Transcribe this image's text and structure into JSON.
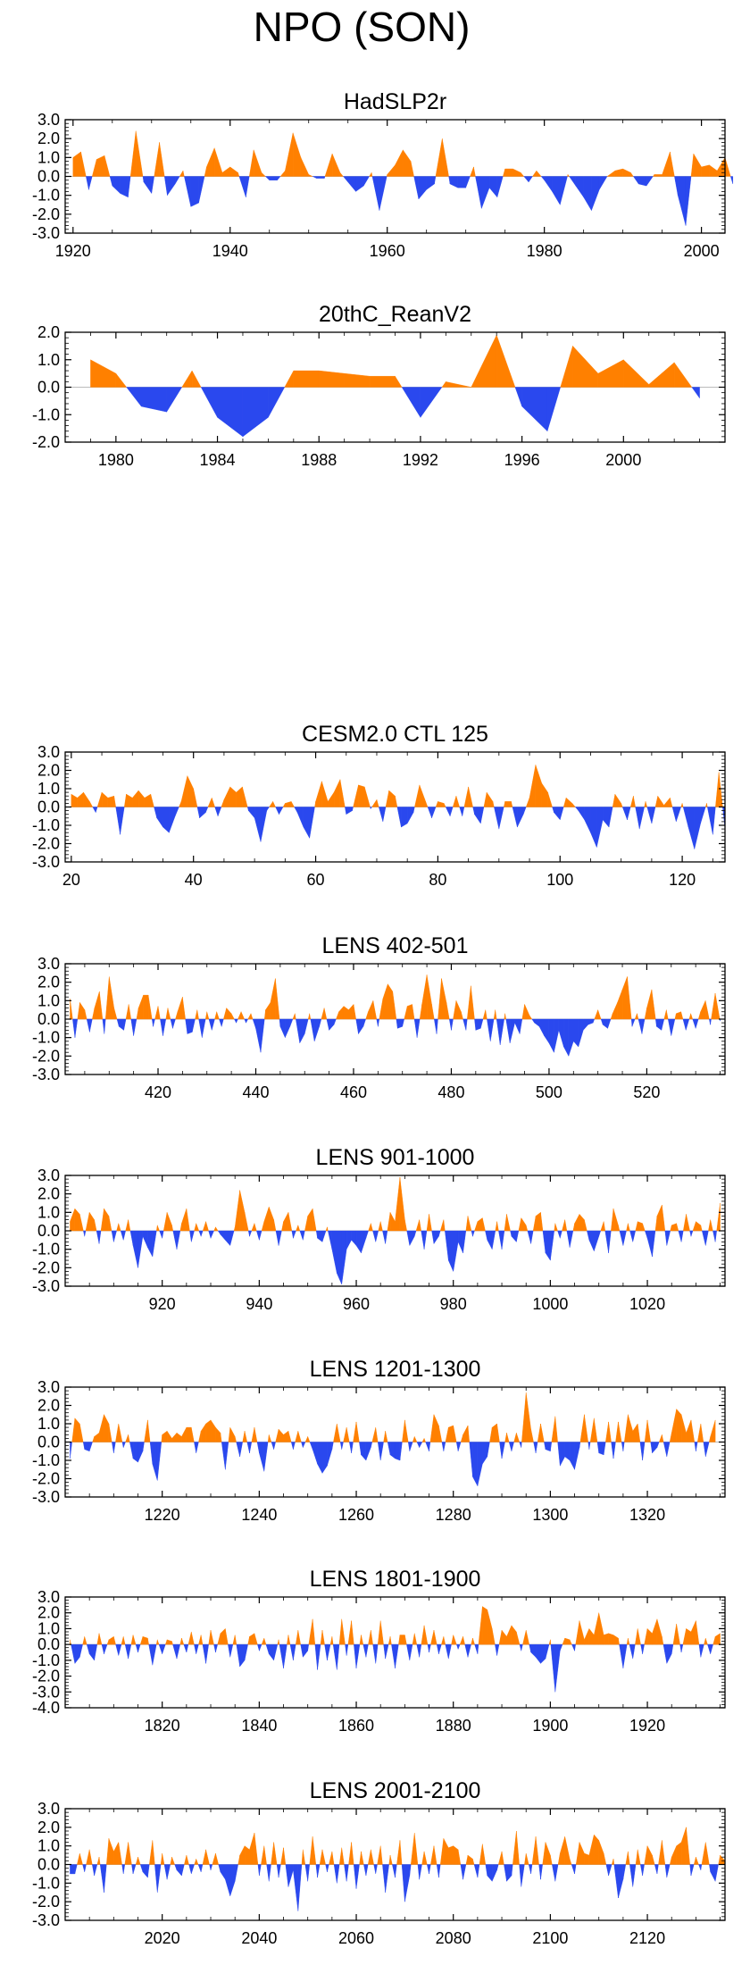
{
  "page_title": "NPO (SON)",
  "colors": {
    "positive": "#ff8000",
    "negative": "#2a48ee",
    "axis": "#000000",
    "zero_line": "#bbbbbb"
  },
  "chart_data": [
    {
      "type": "area",
      "title": "HadSLP2r",
      "x_start": 1920,
      "x_step": 1,
      "xlim": [
        1919,
        2003
      ],
      "ylim": [
        -3,
        3
      ],
      "x_ticks": [
        1920,
        1940,
        1960,
        1980,
        2000
      ],
      "x_tick_labels": [
        "1920",
        "1940",
        "1960",
        "1980",
        "2000"
      ],
      "y_ticks": [
        -3,
        -2,
        -1,
        0,
        1,
        2,
        3
      ],
      "y_tick_labels": [
        "-3.0",
        "-2.0",
        "-1.0",
        "0.0",
        "1.0",
        "2.0",
        "3.0"
      ],
      "values": [
        1.0,
        1.3,
        -0.7,
        0.9,
        1.1,
        -0.5,
        -0.9,
        -1.1,
        2.4,
        -0.3,
        -0.9,
        1.8,
        -1.0,
        -0.4,
        0.3,
        -1.6,
        -1.4,
        0.5,
        1.5,
        0.2,
        0.5,
        0.2,
        -1.1,
        1.4,
        0.2,
        -0.2,
        -0.2,
        0.3,
        2.3,
        1.0,
        0.1,
        -0.1,
        -0.1,
        1.2,
        0.2,
        -0.3,
        -0.8,
        -0.5,
        0.2,
        -1.8,
        0.1,
        0.6,
        1.4,
        0.8,
        -1.2,
        -0.7,
        -0.4,
        2.0,
        -0.4,
        -0.6,
        -0.6,
        0.5,
        -1.7,
        -0.6,
        -1.1,
        0.4,
        0.4,
        0.2,
        -0.3,
        0.3,
        -0.2,
        -0.8,
        -1.5,
        0.1,
        -0.5,
        -1.1,
        -1.8,
        -0.7,
        0.0,
        0.3,
        0.4,
        0.2,
        -0.4,
        -0.5,
        0.1,
        0.1,
        1.3,
        -1.0,
        -2.6,
        1.2,
        0.5,
        0.6,
        0.3,
        1.0,
        -0.4
      ]
    },
    {
      "type": "area",
      "title": "20thC_ReanV2",
      "x_start": 1979,
      "x_step": 1,
      "xlim": [
        1978,
        2004
      ],
      "ylim": [
        -2,
        2
      ],
      "x_ticks": [
        1980,
        1984,
        1988,
        1992,
        1996,
        2000
      ],
      "x_tick_labels": [
        "1980",
        "1984",
        "1988",
        "1992",
        "1996",
        "2000"
      ],
      "y_ticks": [
        -2,
        -1,
        0,
        1,
        2
      ],
      "y_tick_labels": [
        "-2.0",
        "-1.0",
        "0.0",
        "1.0",
        "2.0"
      ],
      "values": [
        1.0,
        0.5,
        -0.7,
        -0.9,
        0.6,
        -1.1,
        -1.8,
        -1.1,
        0.6,
        0.6,
        0.5,
        0.4,
        0.4,
        -1.1,
        0.2,
        0.0,
        1.9,
        -0.7,
        -1.6,
        1.5,
        0.5,
        1.0,
        0.1,
        0.9,
        -0.4
      ]
    },
    {
      "type": "area",
      "title": "CESM2.0 CTL 125",
      "x_start": 20,
      "x_step": 1,
      "xlim": [
        19,
        127
      ],
      "ylim": [
        -3,
        3
      ],
      "x_ticks": [
        20,
        40,
        60,
        80,
        100,
        120
      ],
      "x_tick_labels": [
        "20",
        "40",
        "60",
        "80",
        "100",
        "120"
      ],
      "y_ticks": [
        -3,
        -2,
        -1,
        0,
        1,
        2,
        3
      ],
      "y_tick_labels": [
        "-3.0",
        "-2.0",
        "-1.0",
        "0.0",
        "1.0",
        "2.0",
        "3.0"
      ],
      "values": [
        0.7,
        0.5,
        0.8,
        0.3,
        -0.3,
        0.8,
        0.5,
        0.6,
        -1.5,
        0.7,
        0.5,
        0.9,
        0.5,
        0.7,
        -0.6,
        -1.1,
        -1.4,
        -0.5,
        0.3,
        1.7,
        1.0,
        -0.6,
        -0.3,
        0.5,
        -0.5,
        0.4,
        1.1,
        0.8,
        1.1,
        -0.2,
        -0.6,
        -1.9,
        -0.2,
        0.3,
        -0.4,
        0.2,
        0.3,
        -0.3,
        -1.1,
        -1.7,
        0.3,
        1.4,
        0.3,
        0.8,
        1.5,
        -0.4,
        -0.2,
        1.2,
        1.1,
        -0.1,
        0.4,
        -0.8,
        0.9,
        0.6,
        -1.1,
        -0.9,
        -0.3,
        1.2,
        0.3,
        -0.6,
        0.3,
        0.2,
        -0.5,
        0.6,
        -0.5,
        1.1,
        -0.4,
        -0.9,
        0.8,
        0.3,
        -1.2,
        0.3,
        0.3,
        -1.1,
        -0.4,
        0.5,
        2.3,
        1.3,
        0.8,
        -0.3,
        -0.7,
        0.5,
        0.2,
        -0.2,
        -0.7,
        -1.4,
        -2.2,
        -0.7,
        -1.1,
        0.7,
        0.2,
        -0.7,
        0.6,
        -1.2,
        0.3,
        -0.9,
        0.6,
        0.1,
        0.5,
        -0.8,
        0.2,
        -1.1,
        -2.3,
        -0.9,
        0.2,
        -1.5,
        1.9,
        -1.2
      ]
    },
    {
      "type": "area",
      "title": "LENS 402-501",
      "x_start": 402,
      "x_step": 1,
      "xlim": [
        401,
        536
      ],
      "ylim": [
        -3,
        3
      ],
      "x_ticks": [
        420,
        440,
        460,
        480,
        500,
        520
      ],
      "x_tick_labels": [
        "420",
        "440",
        "460",
        "480",
        "500",
        "520"
      ],
      "y_ticks": [
        -3,
        -2,
        -1,
        0,
        1,
        2,
        3
      ],
      "y_tick_labels": [
        "-3.0",
        "-2.0",
        "-1.0",
        "0.0",
        "1.0",
        "2.0",
        "3.0"
      ],
      "values": [
        1.1,
        -1.0,
        0.9,
        0.5,
        -0.7,
        0.6,
        1.5,
        -0.8,
        2.3,
        0.6,
        -0.4,
        -0.6,
        0.8,
        -0.9,
        0.6,
        1.3,
        1.3,
        -0.4,
        0.7,
        -0.9,
        0.6,
        -0.5,
        0.4,
        1.2,
        -0.8,
        -0.7,
        0.5,
        -1.0,
        0.4,
        -0.6,
        0.4,
        -0.4,
        0.6,
        0.3,
        -0.2,
        0.4,
        -0.2,
        0.3,
        -0.5,
        -1.8,
        0.5,
        0.9,
        2.2,
        -0.4,
        -1.0,
        -0.4,
        0.3,
        -1.3,
        -0.8,
        0.3,
        -1.2,
        -0.4,
        0.6,
        -0.6,
        -0.3,
        0.4,
        0.7,
        0.5,
        0.8,
        -0.8,
        -0.4,
        0.4,
        1.0,
        -0.4,
        1.1,
        1.9,
        1.5,
        -0.5,
        -0.4,
        0.7,
        0.8,
        -1.0,
        0.8,
        2.4,
        0.8,
        -0.8,
        2.2,
        0.9,
        -0.6,
        1.0,
        0.4,
        -0.6,
        1.8,
        -0.6,
        -0.5,
        0.5,
        -1.2,
        0.5,
        -1.4,
        0.3,
        -1.3,
        -0.2,
        -0.8,
        0.8,
        0.2,
        -0.2,
        -0.4,
        -0.9,
        -1.3,
        -1.8,
        -0.6,
        -1.5,
        -2.0,
        -1.2,
        -1.5,
        -0.6,
        -0.3,
        -0.2,
        0.5,
        -0.3,
        -0.5,
        0.3,
        0.9,
        1.6,
        2.3,
        -0.4,
        0.3,
        -0.8,
        0.6,
        1.6,
        -0.4,
        -0.6,
        0.5,
        -0.9,
        0.3,
        0.4,
        -0.6,
        0.3,
        -0.5,
        0.4,
        1.0,
        -0.3,
        1.4,
        -0.1
      ]
    },
    {
      "type": "area",
      "title": "LENS 901-1000",
      "x_start": 901,
      "x_step": 1,
      "xlim": [
        900,
        1036
      ],
      "ylim": [
        -3,
        3
      ],
      "x_ticks": [
        920,
        940,
        960,
        980,
        1000,
        1020
      ],
      "x_tick_labels": [
        "920",
        "940",
        "960",
        "980",
        "1000",
        "1020"
      ],
      "y_ticks": [
        -3,
        -2,
        -1,
        0,
        1,
        2,
        3
      ],
      "y_tick_labels": [
        "-3.0",
        "-2.0",
        "-1.0",
        "0.0",
        "1.0",
        "2.0",
        "3.0"
      ],
      "values": [
        0.5,
        1.2,
        0.9,
        -0.3,
        1.0,
        0.6,
        -0.7,
        1.2,
        0.8,
        -0.6,
        0.4,
        -0.5,
        0.6,
        -0.8,
        -2.0,
        -0.3,
        -0.9,
        -1.4,
        0.3,
        -0.4,
        1.0,
        0.3,
        -1.0,
        0.4,
        1.2,
        -0.6,
        0.4,
        -0.3,
        0.5,
        -0.4,
        0.2,
        -0.2,
        -0.5,
        -0.8,
        0.2,
        2.2,
        1.0,
        -0.3,
        0.4,
        -0.5,
        0.5,
        1.3,
        0.6,
        -0.8,
        0.5,
        1.0,
        -0.4,
        0.3,
        -0.5,
        0.8,
        1.2,
        -0.4,
        -0.6,
        0.2,
        -1.0,
        -2.3,
        -2.9,
        -1.0,
        -0.5,
        -0.8,
        -1.2,
        -0.4,
        0.4,
        -0.6,
        0.5,
        -0.7,
        1.0,
        0.5,
        2.9,
        0.6,
        -0.8,
        -0.3,
        0.6,
        -1.0,
        0.9,
        -0.7,
        -0.3,
        0.6,
        -1.6,
        -2.2,
        -0.6,
        -1.2,
        0.8,
        -0.3,
        0.5,
        0.7,
        -0.5,
        -1.0,
        0.5,
        -1.0,
        0.9,
        -0.3,
        -0.6,
        0.7,
        0.3,
        -0.7,
        0.8,
        1.0,
        -1.2,
        -1.6,
        0.4,
        -0.4,
        0.6,
        -0.9,
        0.4,
        0.9,
        0.6,
        -0.5,
        -1.1,
        -0.3,
        0.5,
        -1.2,
        1.2,
        0.3,
        -0.8,
        0.4,
        -0.6,
        0.5,
        0.4,
        -0.4,
        -1.4,
        0.8,
        1.4,
        -0.8,
        0.3,
        0.4,
        -0.6,
        0.9,
        -0.3,
        0.5,
        0.3,
        -0.8,
        0.6,
        -0.6,
        1.5
      ]
    },
    {
      "type": "area",
      "title": "LENS 1201-1300",
      "x_start": 1201,
      "x_step": 1,
      "xlim": [
        1200,
        1336
      ],
      "ylim": [
        -3,
        3
      ],
      "x_ticks": [
        1220,
        1240,
        1260,
        1280,
        1300,
        1320
      ],
      "x_tick_labels": [
        "1220",
        "1240",
        "1260",
        "1280",
        "1300",
        "1320"
      ],
      "y_ticks": [
        -3,
        -2,
        -1,
        0,
        1,
        2,
        3
      ],
      "y_tick_labels": [
        "-3.0",
        "-2.0",
        "-1.0",
        "0.0",
        "1.0",
        "2.0",
        "3.0"
      ],
      "values": [
        -0.9,
        1.3,
        1.0,
        -0.4,
        -0.5,
        0.3,
        0.5,
        1.5,
        1.0,
        -0.6,
        1.0,
        -0.3,
        0.4,
        -0.9,
        -1.1,
        -0.5,
        1.2,
        -1.2,
        -2.1,
        0.4,
        0.6,
        0.2,
        0.5,
        0.3,
        0.8,
        0.8,
        -0.6,
        0.6,
        1.0,
        1.2,
        0.8,
        0.5,
        -1.5,
        0.8,
        0.3,
        -0.8,
        0.6,
        -0.6,
        0.8,
        -0.6,
        -1.6,
        0.4,
        -0.4,
        0.7,
        0.4,
        0.6,
        -0.4,
        0.6,
        -0.3,
        0.3,
        -0.4,
        -1.2,
        -1.7,
        -1.3,
        -0.4,
        1.0,
        -0.4,
        0.8,
        -0.6,
        1.1,
        -0.7,
        -1.0,
        -0.3,
        0.8,
        -1.0,
        0.6,
        -0.7,
        -0.9,
        -1.0,
        1.2,
        -0.5,
        0.3,
        -0.3,
        0.2,
        -0.5,
        1.5,
        0.9,
        -0.5,
        0.8,
        0.9,
        -0.5,
        0.4,
        0.9,
        -1.9,
        -2.4,
        -1.2,
        -0.8,
        0.8,
        1.0,
        -0.9,
        0.5,
        -0.5,
        0.5,
        -0.3,
        2.7,
        0.7,
        -0.6,
        1.0,
        -0.4,
        -0.5,
        1.4,
        -1.3,
        -0.8,
        -1.0,
        -1.5,
        -0.3,
        1.5,
        -0.4,
        1.3,
        -0.6,
        -0.7,
        1.1,
        -0.9,
        1.1,
        -0.5,
        1.5,
        0.6,
        1.0,
        -1.0,
        1.2,
        -0.6,
        -0.3,
        0.4,
        -0.8,
        0.5,
        1.8,
        1.5,
        0.5,
        1.2,
        -0.5,
        1.0,
        -0.8,
        0.3,
        1.2
      ]
    },
    {
      "type": "area",
      "title": "LENS 1801-1900",
      "x_start": 1801,
      "x_step": 1,
      "xlim": [
        1800,
        1936
      ],
      "ylim": [
        -4,
        3
      ],
      "x_ticks": [
        1820,
        1840,
        1860,
        1880,
        1900,
        1920
      ],
      "x_tick_labels": [
        "1820",
        "1840",
        "1860",
        "1880",
        "1900",
        "1920"
      ],
      "y_ticks": [
        -4,
        -3,
        -2,
        -1,
        0,
        1,
        2,
        3
      ],
      "y_tick_labels": [
        "-4.0",
        "-3.0",
        "-2.0",
        "-1.0",
        "0.0",
        "1.0",
        "2.0",
        "3.0"
      ],
      "values": [
        0.3,
        -1.2,
        -0.8,
        0.5,
        -0.6,
        -1.0,
        0.7,
        -0.6,
        0.3,
        0.5,
        -0.7,
        0.5,
        -0.9,
        0.6,
        -0.5,
        0.5,
        0.4,
        -1.3,
        0.3,
        -0.6,
        0.3,
        0.2,
        -0.9,
        0.4,
        -0.5,
        0.8,
        -0.6,
        0.6,
        -1.2,
        0.9,
        -0.5,
        0.7,
        1.0,
        -0.8,
        0.6,
        -1.4,
        -1.0,
        0.5,
        0.7,
        -0.4,
        0.4,
        -0.6,
        -1.0,
        0.3,
        -1.5,
        0.6,
        -1.0,
        0.9,
        -0.8,
        -0.4,
        1.6,
        -1.6,
        0.9,
        -1.0,
        0.5,
        -1.6,
        1.6,
        -0.7,
        1.5,
        -1.5,
        0.6,
        -0.8,
        0.9,
        -1.2,
        1.5,
        -0.9,
        0.5,
        -1.5,
        0.6,
        0.6,
        -1.0,
        0.7,
        -0.8,
        1.2,
        -0.5,
        0.9,
        -0.6,
        0.5,
        -0.9,
        0.6,
        -0.3,
        0.5,
        -0.8,
        0.4,
        -0.6,
        2.4,
        2.2,
        1.0,
        -0.7,
        0.9,
        0.5,
        1.2,
        0.8,
        -0.4,
        0.9,
        -0.5,
        -0.8,
        -1.2,
        -0.9,
        0.3,
        -3.0,
        -0.4,
        0.4,
        0.3,
        -0.4,
        1.5,
        0.3,
        1.0,
        0.6,
        2.0,
        0.6,
        0.7,
        0.6,
        0.4,
        -1.5,
        0.4,
        -0.9,
        1.0,
        -0.6,
        1.0,
        0.7,
        1.6,
        0.5,
        -1.2,
        -0.6,
        1.3,
        -0.5,
        1.0,
        0.8,
        1.5,
        -0.8,
        0.4,
        -0.6,
        0.5,
        0.7
      ]
    },
    {
      "type": "area",
      "title": "LENS 2001-2100",
      "x_start": 2001,
      "x_step": 1,
      "xlim": [
        2000,
        2136
      ],
      "ylim": [
        -3,
        3
      ],
      "x_ticks": [
        2020,
        2040,
        2060,
        2080,
        2100,
        2120
      ],
      "x_tick_labels": [
        "2020",
        "2040",
        "2060",
        "2080",
        "2100",
        "2120"
      ],
      "y_ticks": [
        -3,
        -2,
        -1,
        0,
        1,
        2,
        3
      ],
      "y_tick_labels": [
        "-3.0",
        "-2.0",
        "-1.0",
        "0.0",
        "1.0",
        "2.0",
        "3.0"
      ],
      "values": [
        -0.5,
        -0.5,
        0.6,
        -0.4,
        0.8,
        -0.6,
        0.4,
        -1.5,
        1.4,
        0.7,
        1.2,
        -0.5,
        1.2,
        -0.5,
        0.4,
        -0.4,
        -0.7,
        1.3,
        -1.5,
        0.6,
        -0.8,
        0.4,
        -0.3,
        -0.6,
        0.5,
        -0.5,
        0.3,
        -0.4,
        0.8,
        -0.3,
        0.6,
        -0.4,
        -0.8,
        -1.7,
        -0.9,
        0.5,
        1.0,
        0.8,
        1.7,
        -0.6,
        1.0,
        -0.9,
        1.2,
        -0.7,
        0.9,
        -1.2,
        -0.3,
        -2.5,
        0.8,
        -0.9,
        1.5,
        -0.7,
        0.8,
        -0.4,
        0.7,
        -1.0,
        0.9,
        -0.9,
        1.2,
        -1.3,
        0.7,
        -0.6,
        0.8,
        -0.5,
        1.0,
        -1.5,
        0.5,
        -0.7,
        1.3,
        -2.0,
        -0.6,
        1.7,
        -0.8,
        0.7,
        -0.5,
        1.0,
        -0.7,
        1.4,
        0.9,
        1.0,
        0.8,
        -0.8,
        0.5,
        0.3,
        -0.7,
        1.1,
        -0.6,
        -0.9,
        -0.3,
        0.7,
        -0.9,
        -0.6,
        1.8,
        -1.2,
        0.6,
        -0.5,
        1.5,
        -0.8,
        1.2,
        0.5,
        -0.9,
        0.6,
        1.5,
        0.3,
        -0.5,
        1.2,
        0.6,
        0.5,
        1.6,
        1.3,
        0.6,
        -0.6,
        0.3,
        -1.8,
        -0.8,
        0.7,
        -1.2,
        0.8,
        -0.6,
        1.0,
        0.5,
        -0.5,
        1.3,
        -0.7,
        0.4,
        1.0,
        1.2,
        2.0,
        -0.6,
        0.4,
        -0.3,
        1.2,
        -0.4,
        -0.9,
        0.5,
        0.2
      ]
    }
  ]
}
